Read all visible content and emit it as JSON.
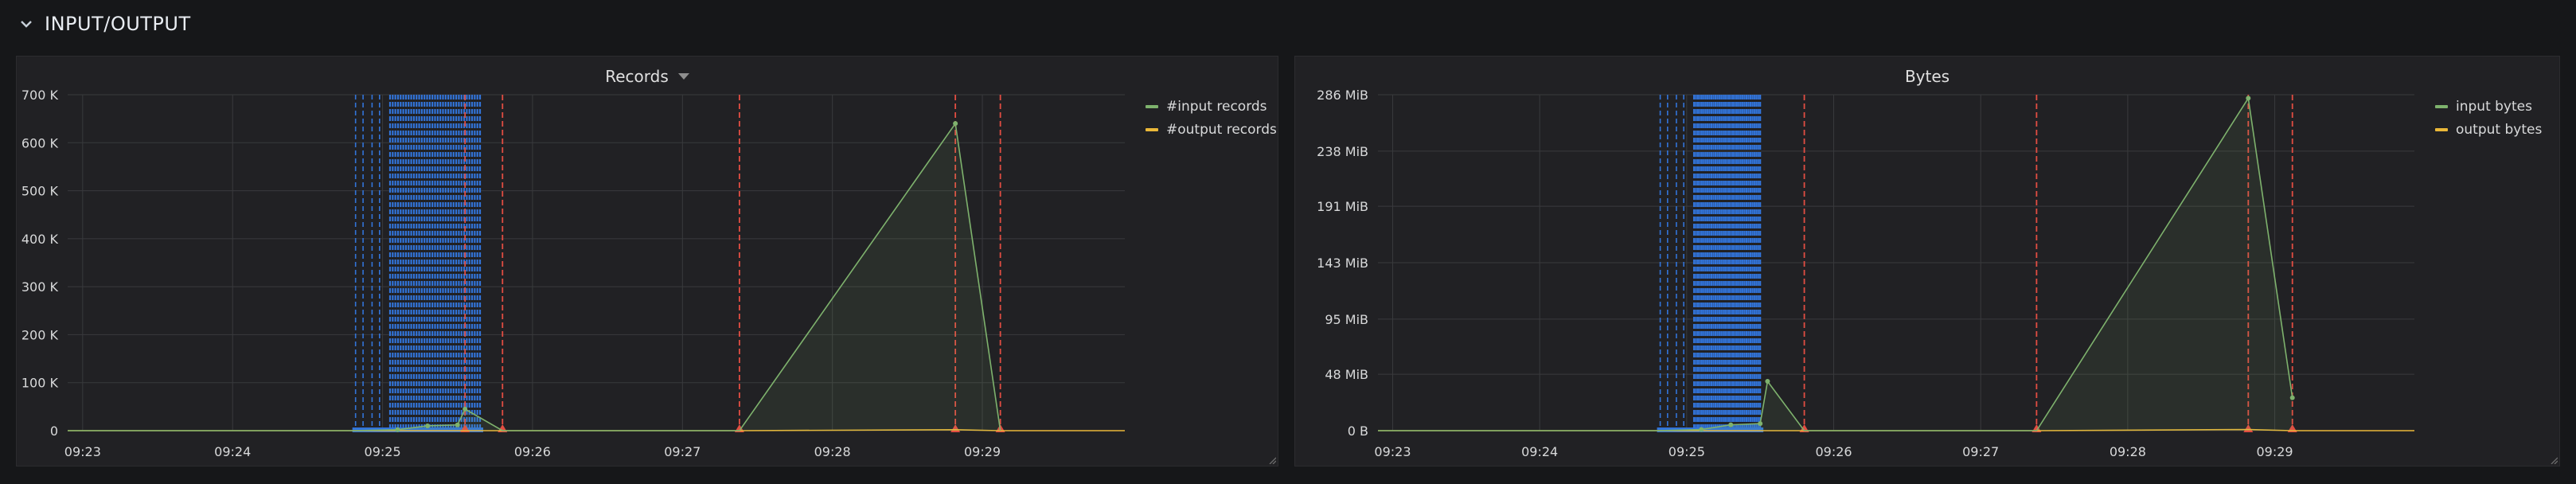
{
  "row": {
    "title": "INPUT/OUTPUT",
    "collapse_icon": "chevron-down-icon"
  },
  "colors": {
    "grid": "#393a3d",
    "axis_text": "#d8d9da",
    "input_series": "#7eb26d",
    "output_series": "#eab839",
    "annotation_blue": "#3274d9",
    "annotation_red": "#e24d42"
  },
  "chart_data": [
    {
      "type": "area",
      "title": "Records",
      "has_menu": true,
      "x_ticks": [
        "09:23",
        "09:24",
        "09:25",
        "09:26",
        "09:27",
        "09:28",
        "09:29"
      ],
      "x_tick_minutes": [
        0,
        1,
        2,
        3,
        4,
        5,
        6
      ],
      "xlim_minutes": [
        -0.1,
        6.95
      ],
      "y_ticks": [
        0,
        100000,
        200000,
        300000,
        400000,
        500000,
        600000,
        700000
      ],
      "y_tick_labels": [
        "0",
        "100 K",
        "200 K",
        "300 K",
        "400 K",
        "500 K",
        "600 K",
        "700 K"
      ],
      "ylim": [
        0,
        700000
      ],
      "grid": true,
      "legend": "right",
      "series": [
        {
          "name": "#input records",
          "x_minutes": [
            -0.1,
            1.8,
            2.1,
            2.3,
            2.5,
            2.55,
            2.8,
            4.38,
            5.82,
            6.12
          ],
          "values": [
            0,
            0,
            2000,
            10000,
            12000,
            45000,
            0,
            0,
            640000,
            0
          ]
        },
        {
          "name": "#output records",
          "x_minutes": [
            -0.1,
            1.8,
            2.5,
            2.8,
            4.38,
            5.82,
            6.12,
            6.95
          ],
          "values": [
            0,
            0,
            0,
            0,
            0,
            2000,
            0,
            0
          ]
        }
      ],
      "annotations_blue_dense": [
        2.05,
        2.65
      ],
      "annotations_blue_lines": [
        1.82,
        1.87,
        1.93,
        1.98
      ],
      "annotations_red": [
        2.55,
        2.8,
        4.38,
        5.82,
        6.12
      ]
    },
    {
      "type": "area",
      "title": "Bytes",
      "has_menu": false,
      "x_ticks": [
        "09:23",
        "09:24",
        "09:25",
        "09:26",
        "09:27",
        "09:28",
        "09:29"
      ],
      "x_tick_minutes": [
        0,
        1,
        2,
        3,
        4,
        5,
        6
      ],
      "xlim_minutes": [
        -0.1,
        6.95
      ],
      "y_ticks": [
        0,
        48,
        95,
        143,
        191,
        238,
        286
      ],
      "y_tick_labels": [
        "0 B",
        "48 MiB",
        "95 MiB",
        "143 MiB",
        "191 MiB",
        "238 MiB",
        "286 MiB"
      ],
      "ylim": [
        0,
        286
      ],
      "grid": true,
      "legend": "right",
      "series": [
        {
          "name": "input bytes",
          "x_minutes": [
            -0.1,
            1.8,
            2.1,
            2.3,
            2.5,
            2.55,
            2.8,
            4.38,
            5.82,
            6.12
          ],
          "values": [
            0,
            0,
            1,
            5,
            6,
            42,
            0,
            0,
            283,
            28
          ]
        },
        {
          "name": "output bytes",
          "x_minutes": [
            -0.1,
            1.8,
            2.5,
            2.8,
            4.38,
            5.82,
            6.12,
            6.95
          ],
          "values": [
            0,
            0,
            0,
            0,
            0,
            1,
            0,
            0
          ]
        }
      ],
      "annotations_blue_dense": [
        2.05,
        2.5
      ],
      "annotations_blue_lines": [
        1.82,
        1.87,
        1.93,
        1.98
      ],
      "annotations_red": [
        2.8,
        4.38,
        5.82,
        6.12
      ]
    }
  ]
}
